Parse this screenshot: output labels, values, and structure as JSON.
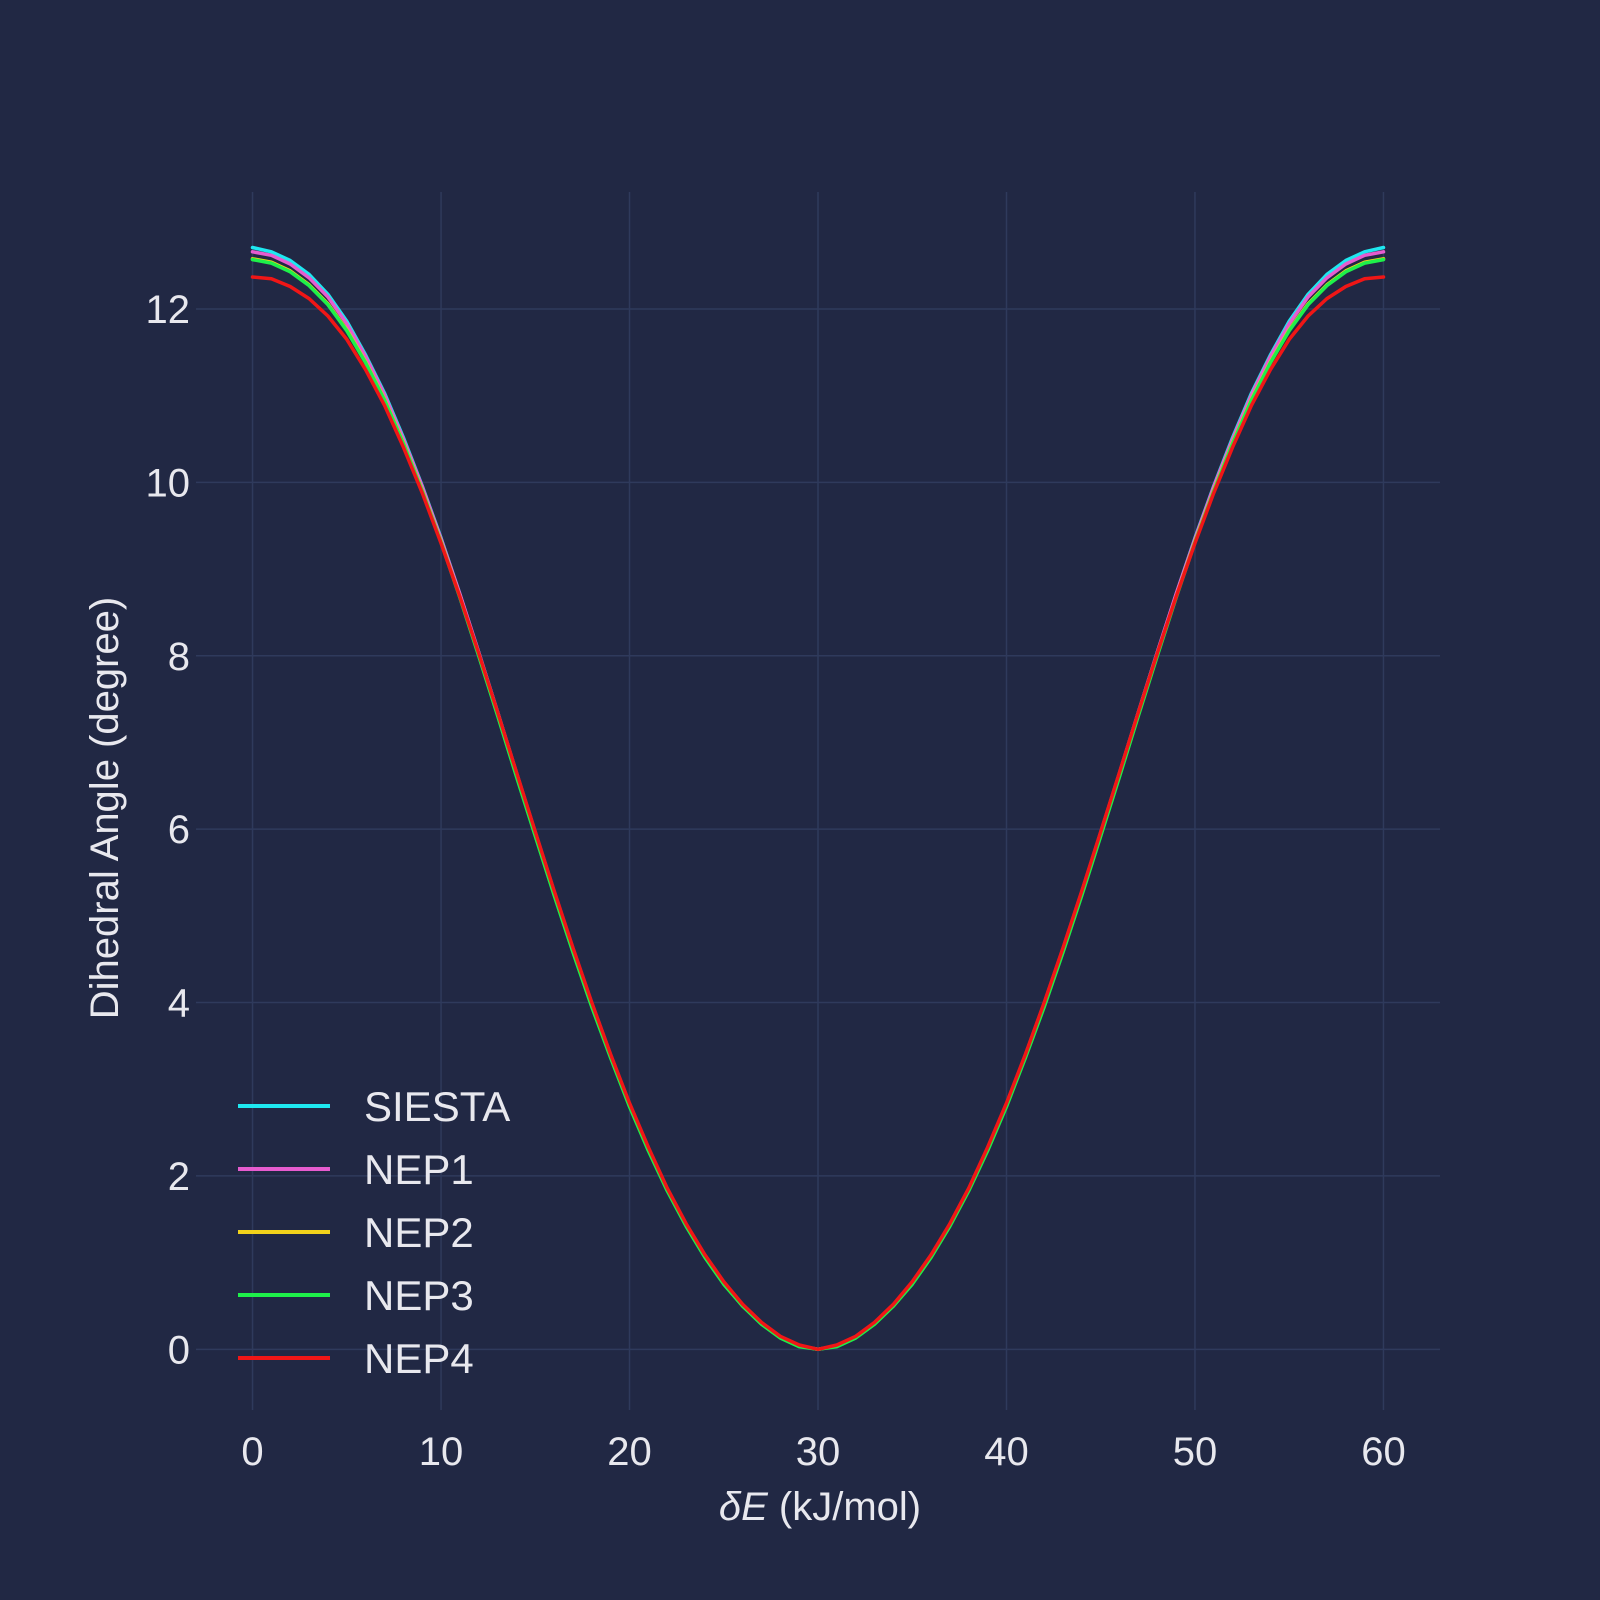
{
  "chart_data": {
    "type": "line",
    "title": "",
    "xlabel_symbol": "δE",
    "xlabel_unit": " (kJ/mol)",
    "ylabel": "Dihedral Angle (degree)",
    "xlim": [
      -3,
      63
    ],
    "ylim": [
      -0.7,
      13.35
    ],
    "xticks": [
      0,
      10,
      20,
      30,
      40,
      50,
      60
    ],
    "xtick_labels": [
      "0",
      "10",
      "20",
      "30",
      "40",
      "50",
      "60"
    ],
    "yticks": [
      0,
      2,
      4,
      6,
      8,
      10,
      12
    ],
    "ytick_labels": [
      "0",
      "2",
      "4",
      "6",
      "8",
      "10",
      "12"
    ],
    "grid": true,
    "legend_position": "bottom-left",
    "x": [
      0,
      1,
      2,
      3,
      4,
      5,
      6,
      7,
      8,
      9,
      10,
      11,
      12,
      13,
      14,
      15,
      16,
      17,
      18,
      19,
      20,
      21,
      22,
      23,
      24,
      25,
      26,
      27,
      28,
      29,
      30,
      31,
      32,
      33,
      34,
      35,
      36,
      37,
      38,
      39,
      40,
      41,
      42,
      43,
      44,
      45,
      46,
      47,
      48,
      49,
      50,
      51,
      52,
      53,
      54,
      55,
      56,
      57,
      58,
      59,
      60
    ],
    "series": [
      {
        "name": "SIESTA",
        "color": "#1ee8f0",
        "values": [
          12.71,
          12.66,
          12.56,
          12.4,
          12.17,
          11.86,
          11.47,
          11.03,
          10.52,
          9.96,
          9.36,
          8.71,
          8.04,
          7.35,
          6.65,
          5.96,
          5.28,
          4.62,
          3.99,
          3.39,
          2.83,
          2.32,
          1.85,
          1.44,
          1.08,
          0.77,
          0.51,
          0.3,
          0.14,
          0.04,
          0.0,
          0.04,
          0.14,
          0.3,
          0.51,
          0.77,
          1.08,
          1.44,
          1.85,
          2.32,
          2.83,
          3.39,
          3.99,
          4.62,
          5.28,
          5.96,
          6.65,
          7.35,
          8.04,
          8.71,
          9.36,
          9.96,
          10.52,
          11.03,
          11.47,
          11.86,
          12.17,
          12.4,
          12.56,
          12.66,
          12.71
        ]
      },
      {
        "name": "NEP1",
        "color": "#e65ccf",
        "values": [
          12.66,
          12.62,
          12.52,
          12.36,
          12.14,
          11.83,
          11.45,
          11.01,
          10.5,
          9.95,
          9.35,
          8.71,
          8.04,
          7.35,
          6.65,
          5.96,
          5.28,
          4.62,
          3.99,
          3.39,
          2.83,
          2.32,
          1.85,
          1.44,
          1.08,
          0.77,
          0.51,
          0.3,
          0.14,
          0.04,
          0.0,
          0.04,
          0.14,
          0.3,
          0.51,
          0.77,
          1.08,
          1.44,
          1.85,
          2.32,
          2.83,
          3.39,
          3.99,
          4.62,
          5.28,
          5.96,
          6.65,
          7.35,
          8.04,
          8.71,
          9.35,
          9.95,
          10.5,
          11.01,
          11.45,
          11.83,
          12.14,
          12.36,
          12.52,
          12.62,
          12.66
        ]
      },
      {
        "name": "NEP2",
        "color": "#f2d21b",
        "values": [
          12.58,
          12.54,
          12.44,
          12.28,
          12.06,
          11.76,
          11.39,
          10.96,
          10.46,
          9.91,
          9.32,
          8.68,
          8.01,
          7.32,
          6.62,
          5.93,
          5.25,
          4.59,
          3.96,
          3.37,
          2.81,
          2.3,
          1.84,
          1.43,
          1.07,
          0.76,
          0.5,
          0.3,
          0.14,
          0.04,
          0.0,
          0.04,
          0.14,
          0.3,
          0.5,
          0.76,
          1.07,
          1.43,
          1.84,
          2.3,
          2.81,
          3.37,
          3.96,
          4.59,
          5.25,
          5.93,
          6.62,
          7.32,
          8.01,
          8.68,
          9.32,
          9.91,
          10.46,
          10.96,
          11.39,
          11.76,
          12.06,
          12.28,
          12.44,
          12.54,
          12.58
        ]
      },
      {
        "name": "NEP3",
        "color": "#1ef04a",
        "values": [
          12.57,
          12.53,
          12.43,
          12.27,
          12.05,
          11.75,
          11.38,
          10.95,
          10.45,
          9.9,
          9.31,
          8.67,
          8.0,
          7.31,
          6.61,
          5.92,
          5.24,
          4.58,
          3.95,
          3.36,
          2.8,
          2.29,
          1.83,
          1.42,
          1.06,
          0.75,
          0.5,
          0.29,
          0.13,
          0.03,
          0.0,
          0.03,
          0.13,
          0.29,
          0.5,
          0.75,
          1.06,
          1.42,
          1.83,
          2.29,
          2.8,
          3.36,
          3.95,
          4.58,
          5.24,
          5.92,
          6.61,
          7.31,
          8.0,
          8.67,
          9.31,
          9.9,
          10.45,
          10.95,
          11.38,
          11.75,
          12.05,
          12.27,
          12.43,
          12.53,
          12.57
        ]
      },
      {
        "name": "NEP4",
        "color": "#f01616",
        "values": [
          12.37,
          12.35,
          12.26,
          12.12,
          11.92,
          11.65,
          11.3,
          10.89,
          10.41,
          9.88,
          9.3,
          8.68,
          8.03,
          7.35,
          6.66,
          5.97,
          5.29,
          4.63,
          4.0,
          3.4,
          2.84,
          2.33,
          1.86,
          1.45,
          1.09,
          0.78,
          0.52,
          0.31,
          0.15,
          0.05,
          0.0,
          0.05,
          0.15,
          0.31,
          0.52,
          0.78,
          1.09,
          1.45,
          1.86,
          2.33,
          2.84,
          3.4,
          4.0,
          4.63,
          5.29,
          5.97,
          6.66,
          7.35,
          8.03,
          8.68,
          9.3,
          9.88,
          10.41,
          10.89,
          11.3,
          11.65,
          11.92,
          12.12,
          12.26,
          12.35,
          12.37
        ]
      }
    ]
  },
  "colors": {
    "background": "#212844",
    "grid": "#2f3a5c",
    "text": "#e8e8ee"
  }
}
